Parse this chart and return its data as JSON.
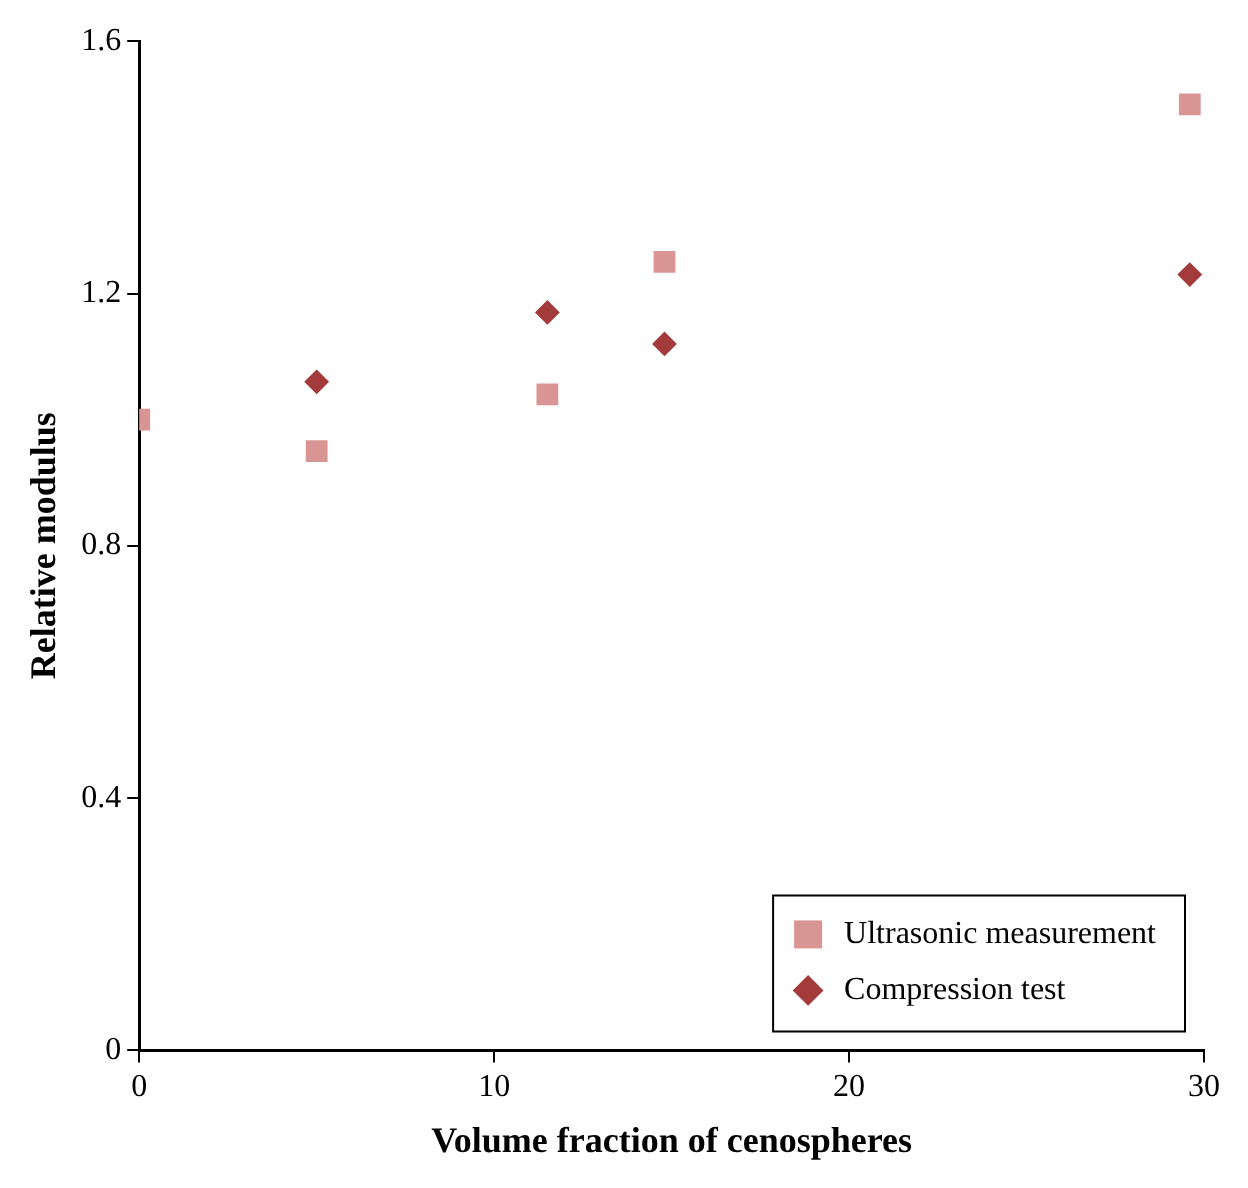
{
  "chart_data": {
    "type": "scatter",
    "xlabel": "Volume fraction of cenospheres",
    "ylabel": "Relative modulus",
    "xlim": [
      0,
      30
    ],
    "xticks": [
      0,
      10,
      20,
      30
    ],
    "ylim": [
      0,
      1.6
    ],
    "yticks": [
      0,
      0.4,
      0.8,
      1.2,
      1.6
    ],
    "grid": false,
    "legend": "bottom right",
    "series": [
      {
        "name": "Ultrasonic measurement",
        "color": "#d99594",
        "marker": "square",
        "x": [
          0,
          5,
          11.5,
          14.8,
          29.6
        ],
        "values": [
          1.0,
          0.95,
          1.04,
          1.25,
          1.5
        ]
      },
      {
        "name": "Compression test",
        "color": "#a33b3b",
        "marker": "diamond",
        "x": [
          5,
          11.5,
          14.8,
          29.6
        ],
        "values": [
          1.06,
          1.17,
          1.12,
          1.23
        ]
      }
    ]
  }
}
